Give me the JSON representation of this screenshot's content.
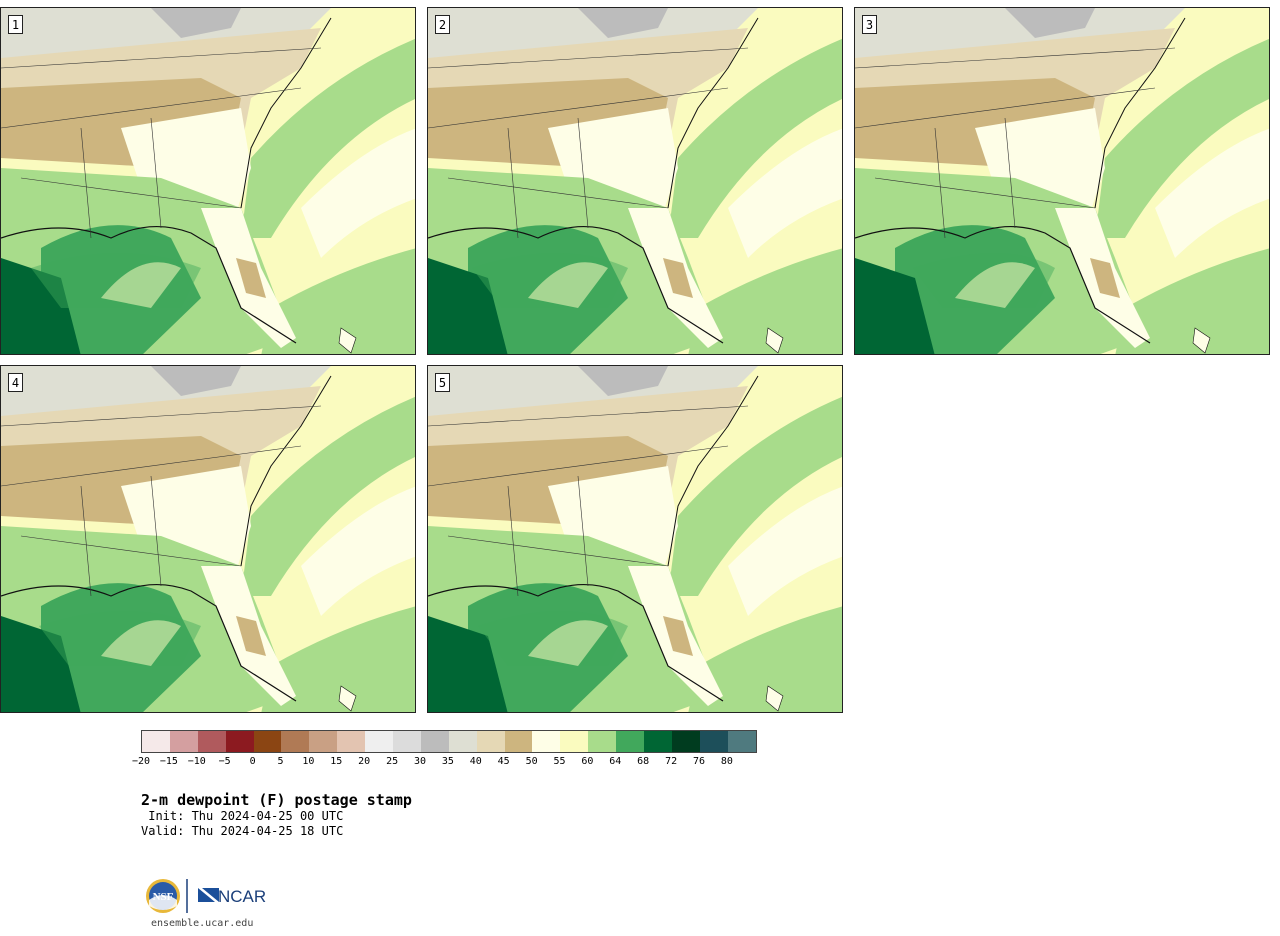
{
  "panels": [
    {
      "label": "1"
    },
    {
      "label": "2"
    },
    {
      "label": "3"
    },
    {
      "label": "4"
    },
    {
      "label": "5"
    }
  ],
  "legend": {
    "colors": [
      "#f5e9e9",
      "#d49fa0",
      "#b05a5d",
      "#8c1a20",
      "#8b4513",
      "#b07a55",
      "#c9a084",
      "#e3c4b1",
      "#efefef",
      "#dcdcdc",
      "#bcbcbc",
      "#dedfd3",
      "#e5d8b5",
      "#cdb57f",
      "#fefee7",
      "#fafbbf",
      "#a8dc8b",
      "#41a85c",
      "#006634",
      "#003c1f",
      "#1d4f5a",
      "#4f7a7f"
    ],
    "ticks": [
      "−20",
      "−15",
      "−10",
      "−5",
      "0",
      "5",
      "10",
      "15",
      "20",
      "25",
      "30",
      "35",
      "40",
      "45",
      "50",
      "55",
      "60",
      "64",
      "68",
      "72",
      "76",
      "80"
    ]
  },
  "title": "2-m dewpoint (F) postage stamp",
  "init": " Init: Thu 2024-04-25 00 UTC",
  "valid": "Valid: Thu 2024-04-25 18 UTC",
  "url": "ensemble.ucar.edu",
  "logos": {
    "nsf": "NSF",
    "ncar": "NCAR"
  }
}
